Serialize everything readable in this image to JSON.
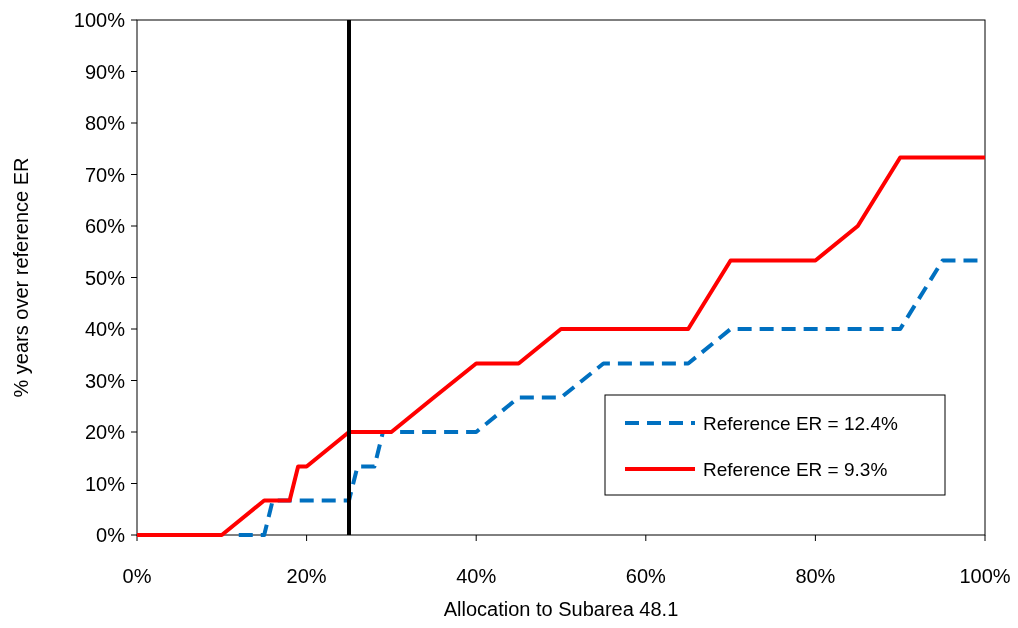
{
  "chart_data": {
    "type": "line",
    "xlabel": "Allocation to Subarea 48.1",
    "ylabel": "% years over reference ER",
    "xlim": [
      0,
      100
    ],
    "ylim": [
      0,
      100
    ],
    "xticks": [
      {
        "value": 0,
        "label": "0%"
      },
      {
        "value": 20,
        "label": "20%"
      },
      {
        "value": 40,
        "label": "40%"
      },
      {
        "value": 60,
        "label": "60%"
      },
      {
        "value": 80,
        "label": "80%"
      },
      {
        "value": 100,
        "label": "100%"
      }
    ],
    "yticks": [
      {
        "value": 0,
        "label": "0%"
      },
      {
        "value": 10,
        "label": "10%"
      },
      {
        "value": 20,
        "label": "20%"
      },
      {
        "value": 30,
        "label": "30%"
      },
      {
        "value": 40,
        "label": "40%"
      },
      {
        "value": 50,
        "label": "50%"
      },
      {
        "value": 60,
        "label": "60%"
      },
      {
        "value": 70,
        "label": "70%"
      },
      {
        "value": 80,
        "label": "80%"
      },
      {
        "value": 90,
        "label": "90%"
      },
      {
        "value": 100,
        "label": "100%"
      }
    ],
    "grid": false,
    "legend": "bottom right",
    "series": [
      {
        "name": "Reference ER = 12.4%",
        "color": "#0070c0",
        "line_style": "dashed",
        "x": [
          12,
          15,
          16,
          25,
          26,
          28,
          29,
          40,
          45,
          50,
          55,
          65,
          70,
          90,
          95,
          100
        ],
        "values": [
          0,
          0,
          6.7,
          6.7,
          13.3,
          13.3,
          20,
          20,
          26.7,
          26.7,
          33.3,
          33.3,
          40,
          40,
          53.3,
          53.3
        ]
      },
      {
        "name": "Reference ER = 9.3%",
        "color": "#ff0000",
        "line_style": "solid",
        "x": [
          0,
          10,
          15,
          18,
          19,
          20,
          25,
          30,
          35,
          40,
          45,
          50,
          65,
          70,
          80,
          85,
          90,
          100
        ],
        "values": [
          0,
          0,
          6.7,
          6.7,
          13.3,
          13.3,
          20,
          20,
          26.7,
          33.3,
          33.3,
          40,
          40,
          53.3,
          53.3,
          60,
          73.3,
          73.3
        ]
      }
    ],
    "ref_lines": [
      {
        "axis": "x",
        "value": 25,
        "color": "#000000"
      }
    ]
  }
}
